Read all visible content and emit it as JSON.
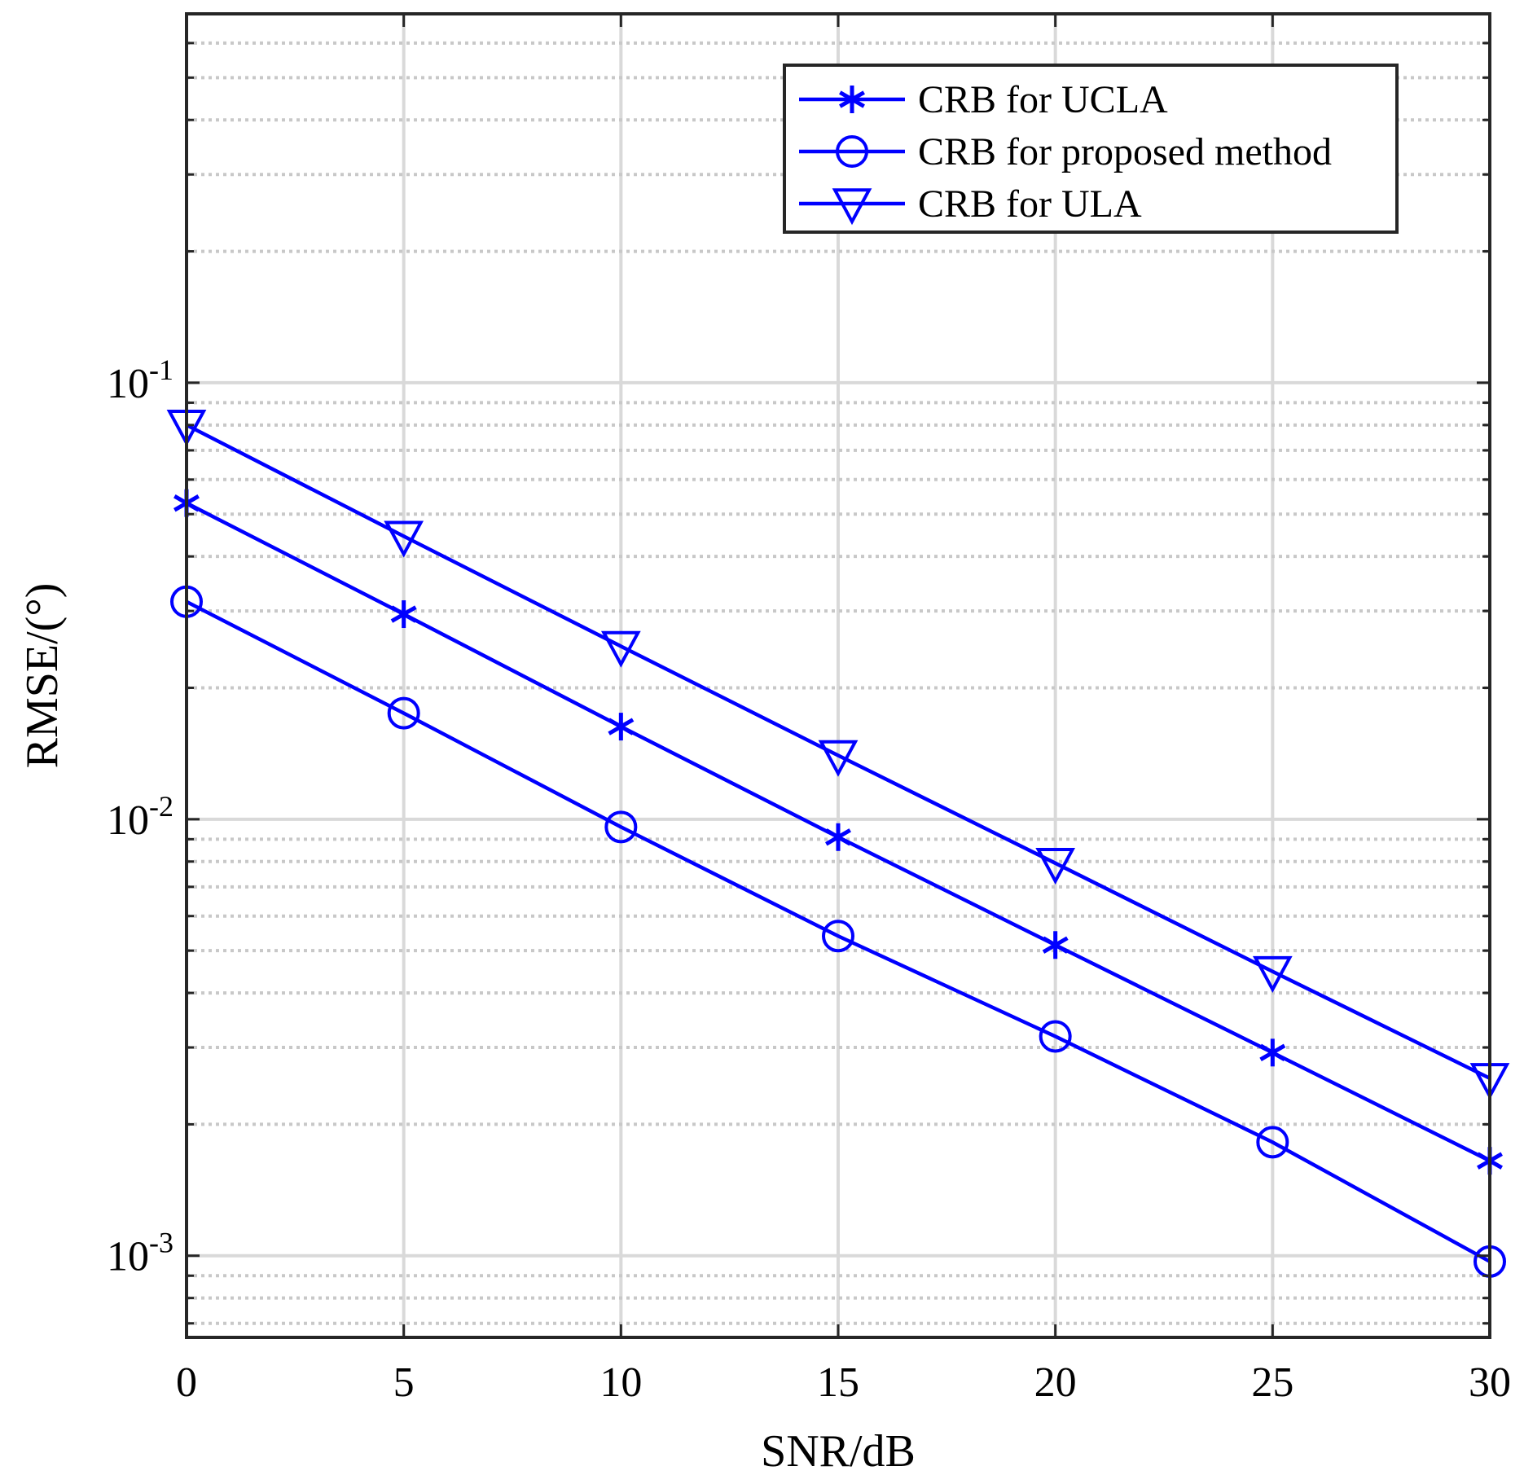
{
  "chart_data": {
    "type": "line",
    "title": "",
    "xlabel": "SNR/dB",
    "ylabel": "RMSE/(°)",
    "x": [
      0,
      5,
      10,
      15,
      20,
      25,
      30
    ],
    "xlim": [
      0,
      30
    ],
    "xticks": [
      "0",
      "5",
      "10",
      "15",
      "20",
      "25",
      "30"
    ],
    "ylim": [
      0.00065,
      0.7
    ],
    "yscale": "log",
    "yticks": [
      {
        "base": "10",
        "exp": "-3",
        "value": 0.001
      },
      {
        "base": "10",
        "exp": "-2",
        "value": 0.01
      },
      {
        "base": "10",
        "exp": "-1",
        "value": 0.1
      }
    ],
    "grid": true,
    "legend_position": "top-right",
    "series": [
      {
        "name": "CRB for UCLA",
        "marker": "asterisk",
        "color": "#0000ff",
        "values": [
          0.053,
          0.0295,
          0.0163,
          0.0091,
          0.00515,
          0.00292,
          0.00165
        ]
      },
      {
        "name": "CRB for proposed method",
        "marker": "circle",
        "color": "#0000ff",
        "values": [
          0.0315,
          0.0175,
          0.0096,
          0.0054,
          0.00318,
          0.00182,
          0.00097
        ]
      },
      {
        "name": "CRB for ULA",
        "marker": "triangle-down",
        "color": "#0000ff",
        "values": [
          0.08,
          0.0445,
          0.0249,
          0.014,
          0.00793,
          0.00448,
          0.00255
        ]
      }
    ]
  }
}
